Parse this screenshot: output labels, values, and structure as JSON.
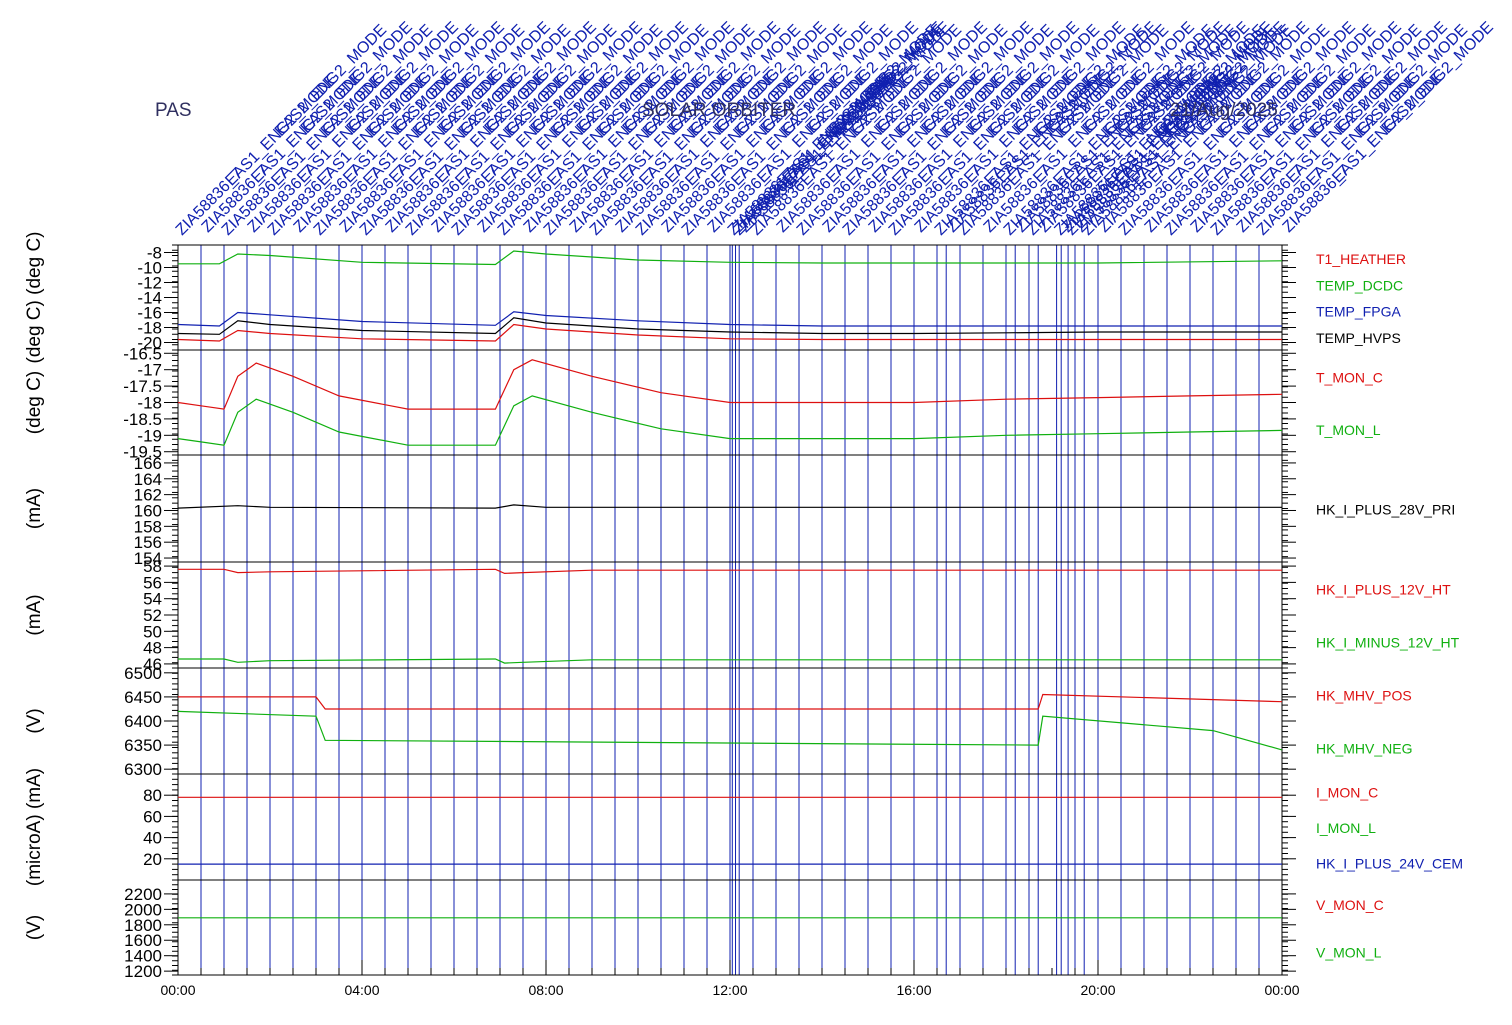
{
  "header": {
    "instrument": "PAS",
    "mission": "SOLAR ORBITER",
    "date": "21/Aug/2025"
  },
  "colors": {
    "axis": "#000000",
    "event": "#1020b0",
    "red": "#dd1010",
    "green": "#10b010",
    "blue": "#1020b0",
    "black": "#000000"
  },
  "event_labels": [
    "ZIA58836_7",
    "EAS1_ENG2_MODE",
    "EAS2_ENG2_MODE"
  ],
  "events_hours": [
    0.0,
    0.5,
    1.0,
    1.5,
    2.0,
    2.5,
    3.0,
    3.5,
    4.0,
    4.5,
    5.0,
    5.5,
    6.0,
    6.5,
    7.0,
    7.5,
    8.0,
    8.5,
    9.0,
    9.5,
    10.0,
    10.5,
    11.0,
    11.5,
    12.0,
    12.05,
    12.12,
    12.2,
    12.5,
    13.0,
    13.5,
    14.0,
    14.5,
    15.0,
    15.5,
    16.0,
    16.5,
    16.7,
    17.0,
    17.5,
    18.0,
    18.2,
    18.5,
    18.7,
    19.1,
    19.2,
    19.35,
    19.5,
    19.7,
    20.0,
    20.5,
    21.0,
    21.5,
    22.0,
    22.5,
    23.0,
    23.5,
    24.0
  ],
  "chart_data": [
    {
      "type": "line",
      "ylabel": "(deg C) (deg C)",
      "ylim": [
        -21,
        -7
      ],
      "y_ticks": [
        -8,
        -10,
        -12,
        -14,
        -16,
        -18,
        -20
      ],
      "series": [
        {
          "name": "T1_HEATHER",
          "color": "#dd1010",
          "x": [
            0,
            0.9,
            1.3,
            2,
            4,
            6.9,
            7.3,
            8,
            10,
            12,
            14,
            16,
            18,
            20,
            24
          ],
          "y": [
            -19.6,
            -19.8,
            -18.4,
            -18.8,
            -19.5,
            -19.8,
            -17.6,
            -18.2,
            -19.0,
            -19.5,
            -19.6,
            -19.6,
            -19.6,
            -19.6,
            -19.6
          ]
        },
        {
          "name": "TEMP_DCDC",
          "color": "#10b010",
          "x": [
            0,
            0.9,
            1.3,
            2,
            4,
            6.9,
            7.3,
            8,
            10,
            12,
            14,
            16,
            18,
            20,
            24
          ],
          "y": [
            -9.5,
            -9.5,
            -8.2,
            -8.4,
            -9.3,
            -9.6,
            -7.8,
            -8.2,
            -9.0,
            -9.3,
            -9.4,
            -9.4,
            -9.4,
            -9.4,
            -9.1
          ]
        },
        {
          "name": "TEMP_FPGA",
          "color": "#1020b0",
          "x": [
            0,
            0.9,
            1.3,
            2,
            4,
            6.9,
            7.3,
            8,
            10,
            12,
            14,
            16,
            18,
            20,
            24
          ],
          "y": [
            -17.6,
            -17.8,
            -16.0,
            -16.3,
            -17.2,
            -17.7,
            -15.9,
            -16.4,
            -17.1,
            -17.6,
            -17.8,
            -17.8,
            -17.8,
            -17.8,
            -17.8
          ]
        },
        {
          "name": "TEMP_HVPS",
          "color": "#000000",
          "x": [
            0,
            0.9,
            1.3,
            2,
            4,
            6.9,
            7.3,
            8,
            10,
            12,
            14,
            16,
            18,
            20,
            24
          ],
          "y": [
            -18.8,
            -18.9,
            -17.1,
            -17.6,
            -18.4,
            -18.8,
            -16.7,
            -17.4,
            -18.2,
            -18.6,
            -18.8,
            -18.8,
            -18.7,
            -18.6,
            -18.6
          ]
        }
      ]
    },
    {
      "type": "line",
      "ylabel": "(deg C)",
      "ylim": [
        -19.6,
        -16.4
      ],
      "y_ticks": [
        -16.5,
        -17.0,
        -17.5,
        -18.0,
        -18.5,
        -19.0,
        -19.5
      ],
      "series": [
        {
          "name": "T_MON_C",
          "color": "#dd1010",
          "x": [
            0,
            0.5,
            1.0,
            1.3,
            1.7,
            2.5,
            3.5,
            5,
            6.9,
            7.3,
            7.7,
            9,
            10.5,
            12,
            14,
            16,
            18,
            20,
            22,
            24
          ],
          "y": [
            -18.0,
            -18.1,
            -18.2,
            -17.2,
            -16.8,
            -17.2,
            -17.8,
            -18.2,
            -18.2,
            -17.0,
            -16.7,
            -17.2,
            -17.7,
            -18.0,
            -18.0,
            -18.0,
            -17.9,
            -17.85,
            -17.8,
            -17.75
          ]
        },
        {
          "name": "T_MON_L",
          "color": "#10b010",
          "x": [
            0,
            0.5,
            1.0,
            1.3,
            1.7,
            2.5,
            3.5,
            5,
            6.9,
            7.3,
            7.7,
            9,
            10.5,
            12,
            14,
            16,
            18,
            20,
            22,
            24
          ],
          "y": [
            -19.1,
            -19.2,
            -19.3,
            -18.3,
            -17.9,
            -18.3,
            -18.9,
            -19.3,
            -19.3,
            -18.1,
            -17.8,
            -18.3,
            -18.8,
            -19.1,
            -19.1,
            -19.1,
            -19.0,
            -18.95,
            -18.9,
            -18.85
          ]
        }
      ]
    },
    {
      "type": "line",
      "ylabel": "(mA)",
      "ylim": [
        153.5,
        167
      ],
      "y_ticks": [
        166,
        164,
        162,
        160,
        158,
        156,
        154
      ],
      "series": [
        {
          "name": "HK_I_PLUS_28V_PRI",
          "color": "#000000",
          "x": [
            0,
            1.3,
            2,
            6.9,
            7.3,
            8,
            24
          ],
          "y": [
            160.3,
            160.6,
            160.4,
            160.3,
            160.7,
            160.4,
            160.4
          ]
        }
      ]
    },
    {
      "type": "line",
      "ylabel": "(mA)",
      "ylim": [
        45.5,
        58.5
      ],
      "y_ticks": [
        58,
        56,
        54,
        52,
        50,
        48,
        46
      ],
      "series": [
        {
          "name": "HK_I_PLUS_12V_HT",
          "color": "#dd1010",
          "x": [
            0,
            1,
            1.3,
            2,
            6.9,
            7.1,
            7.5,
            9,
            24
          ],
          "y": [
            57.6,
            57.6,
            57.2,
            57.3,
            57.6,
            57.1,
            57.2,
            57.5,
            57.5
          ]
        },
        {
          "name": "HK_I_MINUS_12V_HT",
          "color": "#10b010",
          "x": [
            0,
            1,
            1.3,
            2,
            6.9,
            7.1,
            7.5,
            9,
            24
          ],
          "y": [
            46.6,
            46.6,
            46.2,
            46.4,
            46.6,
            46.1,
            46.2,
            46.5,
            46.5
          ]
        }
      ]
    },
    {
      "type": "line",
      "ylabel": "(V)",
      "ylim": [
        6290,
        6510
      ],
      "y_ticks": [
        6500,
        6450,
        6400,
        6350,
        6300
      ],
      "series": [
        {
          "name": "HK_MHV_POS",
          "color": "#dd1010",
          "x": [
            0,
            3,
            3.2,
            18.7,
            18.8,
            24
          ],
          "y": [
            6450,
            6450,
            6425,
            6425,
            6455,
            6440
          ]
        },
        {
          "name": "HK_MHV_NEG",
          "color": "#10b010",
          "x": [
            0,
            3,
            3.2,
            18.7,
            18.8,
            22.5,
            24
          ],
          "y": [
            6420,
            6410,
            6360,
            6350,
            6410,
            6380,
            6340
          ]
        }
      ]
    },
    {
      "type": "line",
      "ylabel": "(microA) (mA)",
      "ylim": [
        0,
        100
      ],
      "y_ticks": [
        80,
        60,
        40,
        20
      ],
      "series": [
        {
          "name": "I_MON_C",
          "color": "#dd1010",
          "x": [
            0,
            24
          ],
          "y": [
            78,
            78
          ]
        },
        {
          "name": "I_MON_L",
          "color": "#10b010",
          "x": [],
          "y": []
        },
        {
          "name": "HK_I_PLUS_24V_CEM",
          "color": "#1020b0",
          "x": [
            0,
            24
          ],
          "y": [
            15,
            15
          ]
        }
      ]
    },
    {
      "type": "line",
      "ylabel": "(V)",
      "ylim": [
        1150,
        2380
      ],
      "y_ticks": [
        2200,
        2000,
        1800,
        1600,
        1400,
        1200
      ],
      "series": [
        {
          "name": "V_MON_C",
          "color": "#dd1010",
          "x": [],
          "y": []
        },
        {
          "name": "V_MON_L",
          "color": "#10b010",
          "x": [
            0,
            24
          ],
          "y": [
            1890,
            1890
          ]
        }
      ]
    }
  ],
  "x_axis": {
    "range_hours": [
      0,
      24
    ],
    "tick_hours": [
      0,
      4,
      8,
      12,
      16,
      20,
      24
    ],
    "tick_labels": [
      "00:00",
      "04:00",
      "08:00",
      "12:00",
      "16:00",
      "20:00",
      "00:00"
    ]
  }
}
